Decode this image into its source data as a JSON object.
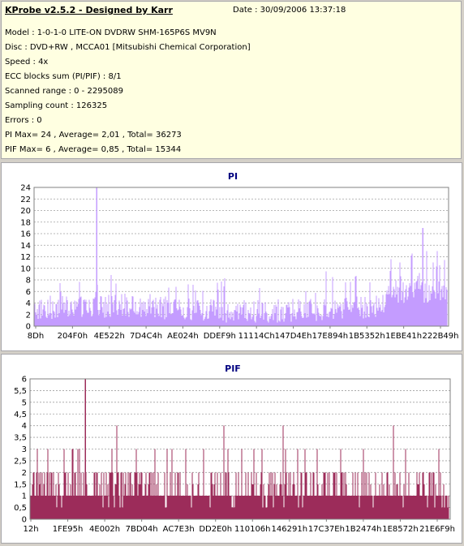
{
  "header": {
    "title": "KProbe v2.5.2 - Designed by Karr",
    "date": "Date : 30/09/2006 13:37:18",
    "lines": [
      "Model : 1-0-1-0 LITE-ON DVDRW SHM-165P6S MV9N",
      "Disc : DVD+RW , MCCA01 [Mitsubishi Chemical Corporation]",
      "Speed : 4x",
      "ECC blocks sum (PI/PIF) : 8/1",
      "Scanned range : 0 - 2295089",
      "Sampling count : 126325",
      "Errors : 0",
      "PI Max= 24 , Average= 2,01 , Total= 36273",
      "PIF Max= 6 , Average= 0,85 , Total= 15344"
    ]
  },
  "colors": {
    "pi": "#c49cff",
    "pif": "#9c2c5a",
    "title": "#000080",
    "grid": "#a0a0a0"
  },
  "chart_data": [
    {
      "type": "bar",
      "title": "PI",
      "ylim": [
        0,
        24
      ],
      "yticks": [
        "0",
        "2",
        "4",
        "6",
        "8",
        "10",
        "12",
        "14",
        "16",
        "18",
        "20",
        "22",
        "24"
      ],
      "xticks": [
        "8Dh",
        "204F0h",
        "4E522h",
        "7D4C4h",
        "AE024h",
        "DDEF9h",
        "11114Ch",
        "147D4Eh",
        "17E894h",
        "1B5352h",
        "1EBE41h",
        "222B49h"
      ],
      "grid": true,
      "max": 24,
      "average": 2.01,
      "peaks": [
        {
          "pos": 0.15,
          "value": 24
        },
        {
          "pos": 0.94,
          "value": 17
        }
      ],
      "color": "#c49cff"
    },
    {
      "type": "bar",
      "title": "PIF",
      "ylim": [
        0,
        6
      ],
      "yticks": [
        "0",
        "0,5",
        "1",
        "1,5",
        "2",
        "2,5",
        "3",
        "3,5",
        "4",
        "4,5",
        "5",
        "5,5",
        "6"
      ],
      "xticks": [
        "12h",
        "1FE95h",
        "4E002h",
        "7BD04h",
        "AC7E3h",
        "DD2E0h",
        "110106h",
        "146291h",
        "17C37Eh",
        "1B2474h",
        "1E8572h",
        "21E6F9h"
      ],
      "grid": true,
      "max": 6,
      "average": 0.85,
      "peaks": [
        {
          "pos": 0.13,
          "value": 6
        }
      ],
      "color": "#9c2c5a"
    }
  ]
}
